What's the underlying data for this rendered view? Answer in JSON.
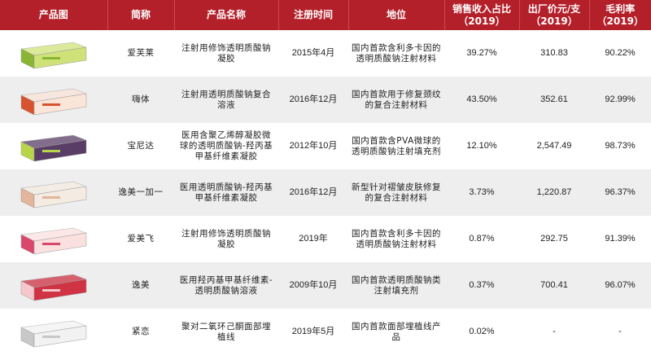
{
  "header": {
    "image": "产品图",
    "short_name": "简称",
    "product_name": "产品名称",
    "reg_time": "注册时间",
    "position": "地位",
    "revenue_share": "销售收入占比（2019）",
    "price": "出厂价元/支（2019）",
    "margin": "毛利率（2019）"
  },
  "rows": [
    {
      "short": "爱芙莱",
      "name": "注射用修饰透明质酸钠凝胶",
      "time": "2015年4月",
      "position": "国内首款含利多卡因的透明质酸钠注射材料",
      "share": "39.27%",
      "price": "310.83",
      "margin": "90.22%",
      "box_color": "#cfe27a",
      "accent": "#8ab532"
    },
    {
      "short": "嗨体",
      "name": "注射用透明质酸钠复合溶液",
      "time": "2016年12月",
      "position": "国内首款用于修复颈纹的复合注射材料",
      "share": "43.50%",
      "price": "352.61",
      "margin": "92.99%",
      "box_color": "#fbe4d8",
      "accent": "#d7532f"
    },
    {
      "short": "宝尼达",
      "name": "医用含聚乙烯醇凝胶微球的透明质酸钠-羟丙基甲基纤维素凝胶",
      "time": "2012年10月",
      "position": "国内首款含PVA微球的透明质酸钠注射填充剂",
      "share": "12.10%",
      "price": "2,547.49",
      "margin": "98.73%",
      "box_color": "#5a3d66",
      "accent": "#b8d54a"
    },
    {
      "short": "逸美一加一",
      "name": "医用透明质酸钠-羟丙基甲基纤维素凝胶",
      "time": "2016年12月",
      "position": "新型针对褶皱皮肤修复的复合注射材料",
      "share": "3.73%",
      "price": "1,220.87",
      "margin": "96.37%",
      "box_color": "#f4ece2",
      "accent": "#e3b59a"
    },
    {
      "short": "爱美飞",
      "name": "注射用修饰透明质酸钠凝胶",
      "time": "2019年",
      "position": "国内首款含利多卡因的透明质酸钠注射材料",
      "share": "0.87%",
      "price": "292.75",
      "margin": "91.39%",
      "box_color": "#fbe0e0",
      "accent": "#d9486a"
    },
    {
      "short": "逸美",
      "name": "医用羟丙基甲基纤维素-透明质酸钠溶液",
      "time": "2009年10月",
      "position": "国内首款透明质酸钠类注射填充剂",
      "share": "0.37%",
      "price": "700.41",
      "margin": "96.07%",
      "box_color": "#cf3344",
      "accent": "#f5c6cc"
    },
    {
      "short": "紧恋",
      "name": "聚对二氧环己酮面部埋植线",
      "time": "2019年5月",
      "position": "国内首款面部埋植线产品",
      "share": "0.02%",
      "price": "-",
      "margin": "-",
      "box_color": "#f2f2f2",
      "accent": "#c8c8c8"
    }
  ]
}
